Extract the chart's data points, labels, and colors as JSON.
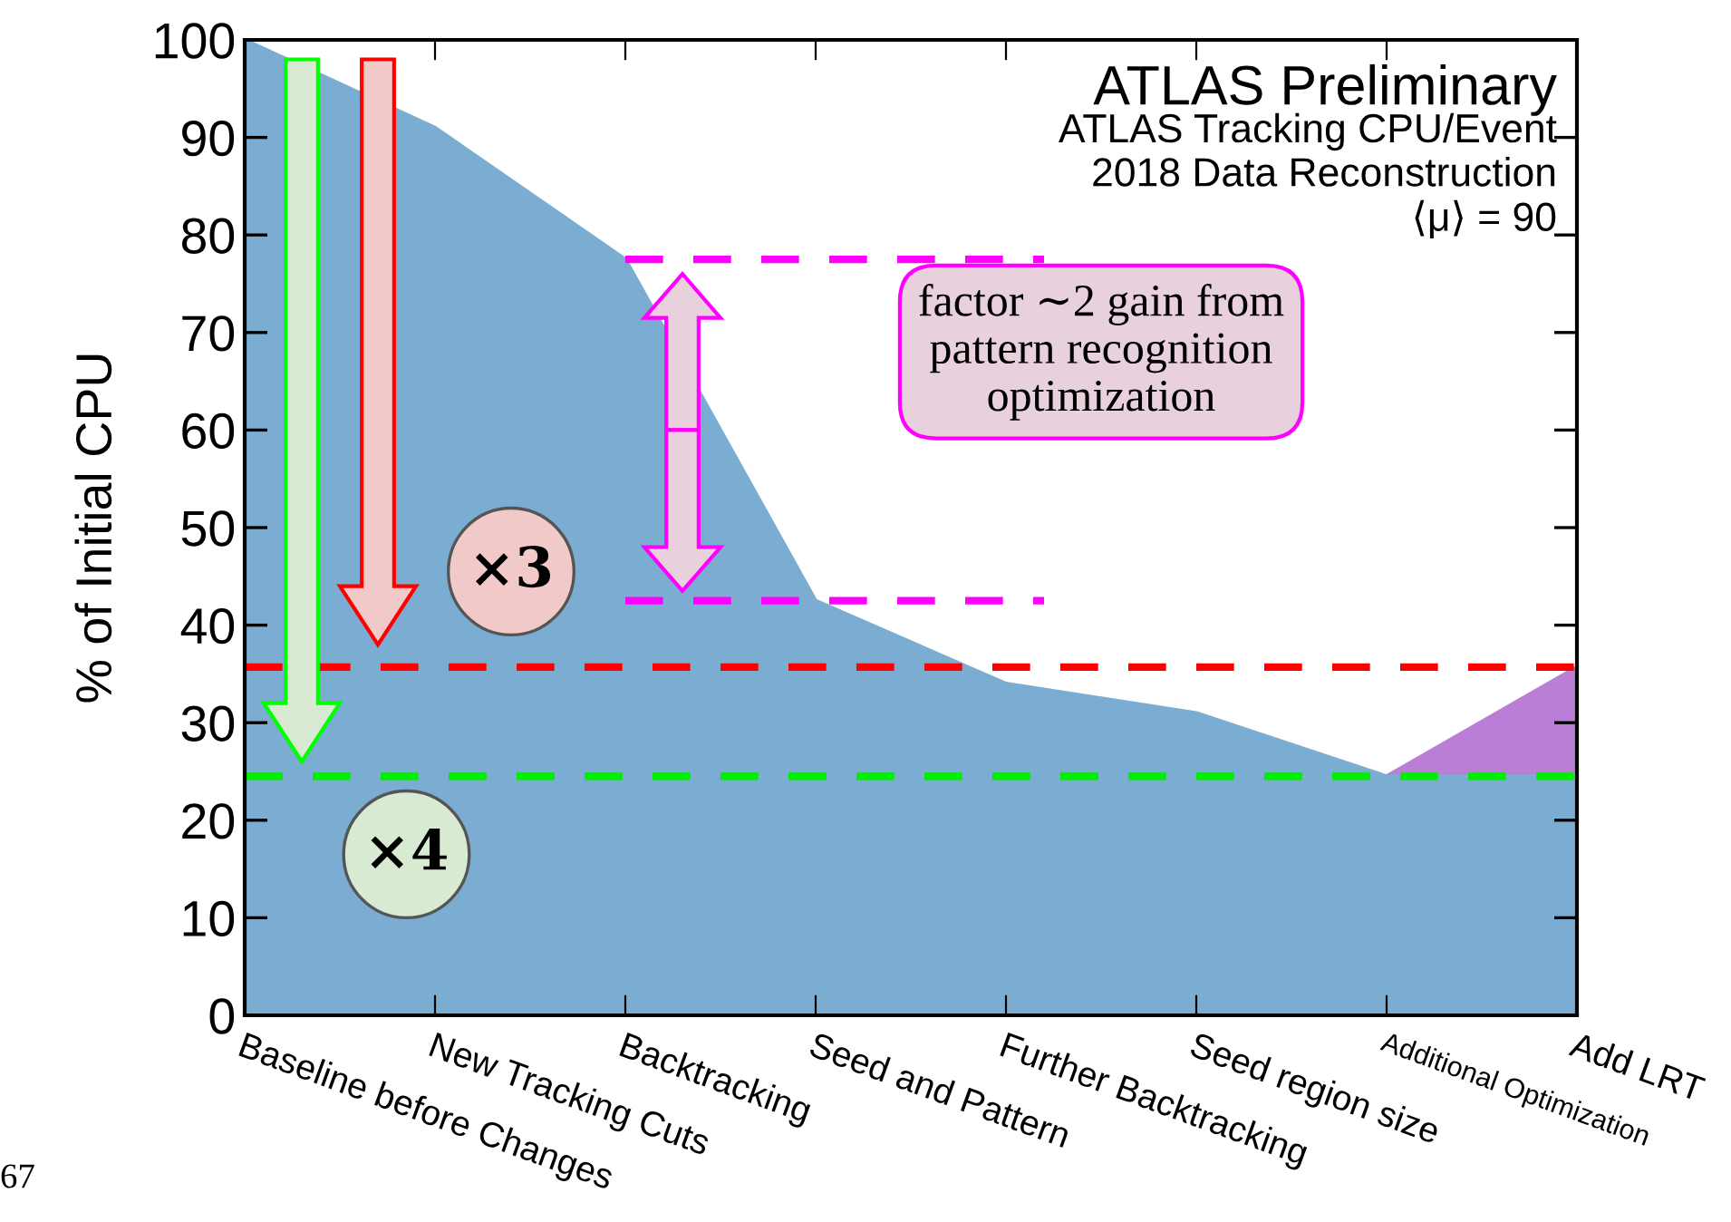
{
  "chart_data": {
    "type": "area",
    "ylabel": "% of Initial CPU",
    "categories": [
      "Baseline before Changes",
      "New Tracking Cuts",
      "Backtracking",
      "Seed and Pattern",
      "Further Backtracking",
      "Seed region size",
      "Additional Optimization",
      "Add LRT"
    ],
    "series": [
      {
        "color": "#7bacd1",
        "values": [
          100,
          91,
          77.5,
          42.5,
          34,
          31,
          24.5,
          24.5
        ]
      },
      {
        "color": "#bb7ed6",
        "values": [
          null,
          null,
          null,
          null,
          null,
          null,
          24.5,
          35.7
        ]
      }
    ],
    "ylim": [
      0,
      100
    ],
    "yticks": [
      0,
      10,
      20,
      30,
      40,
      50,
      60,
      70,
      80,
      90,
      100
    ],
    "grid": false,
    "legend": false,
    "ref_lines": [
      {
        "axis": "y",
        "value": 35.7,
        "color": "#ff0000",
        "line_style": "dashed"
      },
      {
        "axis": "y",
        "value": 24.5,
        "color": "#00ee00",
        "line_style": "dashed"
      },
      {
        "axis": "y",
        "value": 77.5,
        "color": "#ff00ff",
        "line_style": "dashed"
      },
      {
        "axis": "y",
        "value": 42.5,
        "color": "#ff00ff",
        "line_style": "dashed"
      }
    ],
    "annotations": [
      "ATLAS Preliminary",
      "ATLAS Tracking CPU/Event",
      "2018 Data Reconstruction",
      "⟨μ⟩ = 90",
      "factor ∼2 gain from\npattern recognition\noptimization",
      "×3",
      "×4",
      "67"
    ]
  }
}
